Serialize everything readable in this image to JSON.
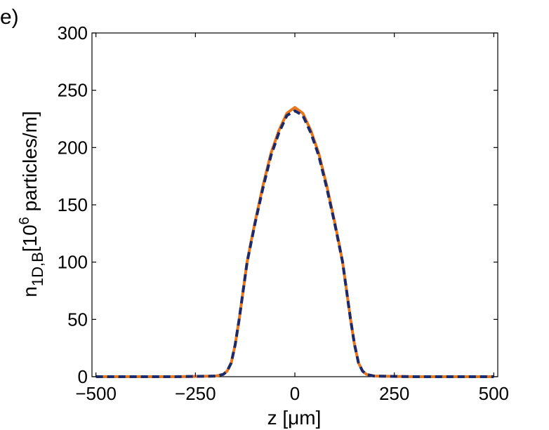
{
  "panel_label": "e)",
  "colors": {
    "series_solid": "#E8761D",
    "series_dashed": "#1B2A6B",
    "axis": "#000000"
  },
  "chart_data": {
    "type": "line",
    "title": "",
    "xlabel": "z [μm]",
    "ylabel": {
      "base": "n",
      "sub": "1D,B",
      "unit_prefix": "[10",
      "unit_exp": "6",
      "unit_suffix": " particles/m]"
    },
    "xlim": [
      -510,
      510
    ],
    "ylim": [
      0,
      300
    ],
    "xticks": [
      -500,
      -250,
      0,
      250,
      500
    ],
    "xtick_labels": [
      "−500",
      "−250",
      "0",
      "250",
      "500"
    ],
    "yticks": [
      0,
      50,
      100,
      150,
      200,
      250,
      300
    ],
    "ytick_labels": [
      "0",
      "50",
      "100",
      "150",
      "200",
      "250",
      "300"
    ],
    "grid": false,
    "legend": "none",
    "series": [
      {
        "style": "solid",
        "color": "#E8761D",
        "x": [
          -500,
          -300,
          -200,
          -180,
          -170,
          -160,
          -150,
          -140,
          -130,
          -120,
          -110,
          -100,
          -80,
          -60,
          -40,
          -20,
          0,
          20,
          40,
          60,
          80,
          100,
          110,
          120,
          130,
          140,
          150,
          160,
          170,
          180,
          200,
          300,
          500
        ],
        "y": [
          0,
          0,
          0.5,
          2,
          5,
          12,
          28,
          50,
          75,
          100,
          118,
          135,
          167,
          195,
          215,
          230,
          235,
          230,
          215,
          195,
          167,
          135,
          118,
          100,
          75,
          50,
          28,
          12,
          5,
          2,
          0.5,
          0,
          0
        ]
      },
      {
        "style": "dashed",
        "color": "#1B2A6B",
        "x": [
          -500,
          -300,
          -200,
          -180,
          -170,
          -160,
          -150,
          -140,
          -130,
          -120,
          -110,
          -100,
          -80,
          -60,
          -40,
          -20,
          0,
          20,
          40,
          60,
          80,
          100,
          110,
          120,
          130,
          140,
          150,
          160,
          170,
          180,
          200,
          300,
          500
        ],
        "y": [
          0,
          0,
          0.5,
          2,
          5,
          12,
          28,
          50,
          75,
          100,
          117,
          134,
          165,
          193,
          213,
          228,
          232,
          228,
          213,
          193,
          165,
          134,
          117,
          100,
          75,
          50,
          28,
          12,
          5,
          2,
          0.5,
          0,
          0
        ]
      }
    ]
  }
}
